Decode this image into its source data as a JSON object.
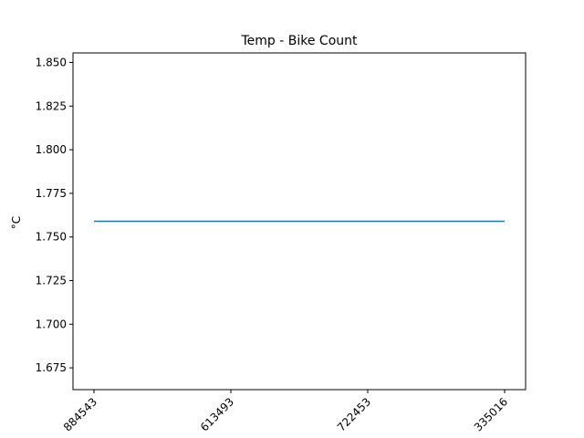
{
  "chart_data": {
    "type": "line",
    "title": "Temp - Bike Count",
    "xlabel": "",
    "ylabel": "°C",
    "categories": [
      "884543",
      "613493",
      "722453",
      "335016"
    ],
    "series": [
      {
        "values": [
          1.759,
          1.759,
          1.759,
          1.759
        ],
        "color": "#1f77b4"
      }
    ],
    "ylim": [
      1.6625,
      1.8555
    ],
    "yticks": [
      1.675,
      1.7,
      1.725,
      1.75,
      1.775,
      1.8,
      1.825,
      1.85
    ],
    "ytick_labels": [
      "1.675",
      "1.700",
      "1.725",
      "1.750",
      "1.775",
      "1.800",
      "1.825",
      "1.850"
    ],
    "grid": false,
    "legend": "none"
  }
}
